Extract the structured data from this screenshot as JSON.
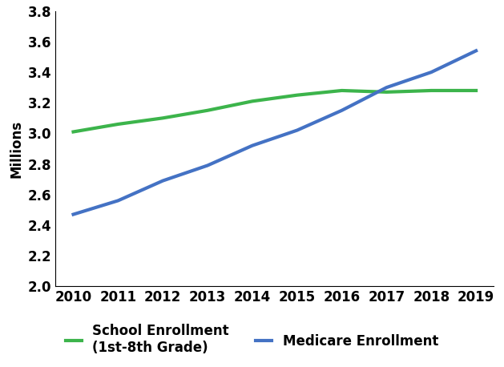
{
  "chart_data": {
    "type": "line",
    "y_label": "Millions",
    "categories": [
      "2010",
      "2011",
      "2012",
      "2013",
      "2014",
      "2015",
      "2016",
      "2017",
      "2018",
      "2019"
    ],
    "series": [
      {
        "name": "School Enrollment\n(1st-8th Grade)",
        "color": "#3cb44b",
        "values": [
          3.01,
          3.06,
          3.1,
          3.15,
          3.21,
          3.25,
          3.28,
          3.27,
          3.28,
          3.28
        ]
      },
      {
        "name": "Medicare Enrollment",
        "color": "#4472c4",
        "values": [
          2.47,
          2.56,
          2.69,
          2.79,
          2.92,
          3.02,
          3.15,
          3.3,
          3.4,
          3.54
        ]
      }
    ],
    "ylim": [
      2.0,
      3.8
    ],
    "yticks": [
      2.0,
      2.2,
      2.4,
      2.6,
      2.8,
      3.0,
      3.2,
      3.4,
      3.6,
      3.8
    ],
    "grid": false,
    "legend": "lower center"
  }
}
